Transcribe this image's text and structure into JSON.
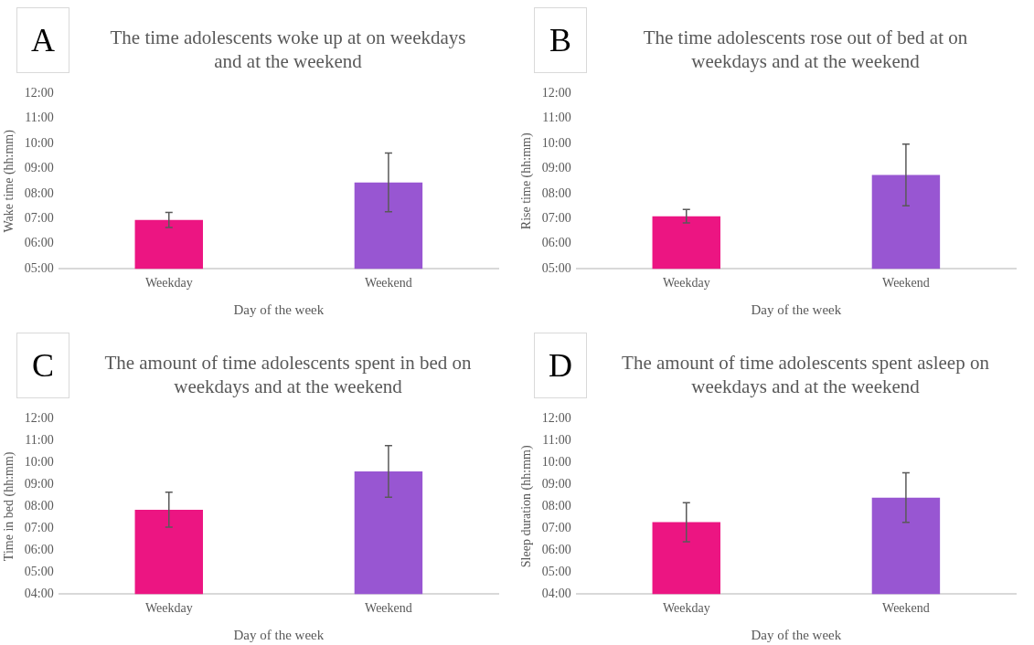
{
  "chart_data": [
    {
      "type": "bar",
      "title": "The time adolescents woke up at on weekdays and at the weekend",
      "xlabel": "Day of the week",
      "ylabel": "Wake time (hh:mm)",
      "categories": [
        "Weekday",
        "Weekend"
      ],
      "values": [
        6.95,
        8.45
      ],
      "colors": [
        "#ec1582",
        "#9856d2"
      ],
      "errors": [
        0.3,
        1.17
      ],
      "ylim": [
        5,
        12
      ],
      "yticks": [
        {
          "value": 5,
          "label": "05:00"
        },
        {
          "value": 6,
          "label": "06:00"
        },
        {
          "value": 7,
          "label": "07:00"
        },
        {
          "value": 8,
          "label": "08:00"
        },
        {
          "value": 9,
          "label": "09:00"
        },
        {
          "value": 10,
          "label": "10:00"
        },
        {
          "value": 11,
          "label": "11:00"
        },
        {
          "value": 12,
          "label": "12:00"
        }
      ],
      "annotations": [
        "A"
      ]
    },
    {
      "type": "bar",
      "title": "The time adolescents rose out of bed at on weekdays and at the weekend",
      "xlabel": "Day of the week",
      "ylabel": "Rise time (hh:mm)",
      "categories": [
        "Weekday",
        "Weekend"
      ],
      "values": [
        7.1,
        8.75
      ],
      "colors": [
        "#ec1582",
        "#9856d2"
      ],
      "errors": [
        0.27,
        1.23
      ],
      "ylim": [
        5,
        12
      ],
      "yticks": [
        {
          "value": 5,
          "label": "05:00"
        },
        {
          "value": 6,
          "label": "06:00"
        },
        {
          "value": 7,
          "label": "07:00"
        },
        {
          "value": 8,
          "label": "08:00"
        },
        {
          "value": 9,
          "label": "09:00"
        },
        {
          "value": 10,
          "label": "10:00"
        },
        {
          "value": 11,
          "label": "11:00"
        },
        {
          "value": 12,
          "label": "12:00"
        }
      ],
      "annotations": [
        "B"
      ]
    },
    {
      "type": "bar",
      "title": "The amount of time adolescents spent in bed on weekdays and at the weekend",
      "xlabel": "Day of the week",
      "ylabel": "Time in bed (hh:mm)",
      "categories": [
        "Weekday",
        "Weekend"
      ],
      "values": [
        7.85,
        9.6
      ],
      "colors": [
        "#ec1582",
        "#9856d2"
      ],
      "errors": [
        0.8,
        1.18
      ],
      "ylim": [
        4,
        12
      ],
      "yticks": [
        {
          "value": 4,
          "label": "04:00"
        },
        {
          "value": 5,
          "label": "05:00"
        },
        {
          "value": 6,
          "label": "06:00"
        },
        {
          "value": 7,
          "label": "07:00"
        },
        {
          "value": 8,
          "label": "08:00"
        },
        {
          "value": 9,
          "label": "09:00"
        },
        {
          "value": 10,
          "label": "10:00"
        },
        {
          "value": 11,
          "label": "11:00"
        },
        {
          "value": 12,
          "label": "12:00"
        }
      ],
      "annotations": [
        "C"
      ]
    },
    {
      "type": "bar",
      "title": "The amount of time adolescents spent asleep on weekdays and at the weekend",
      "xlabel": "Day of the week",
      "ylabel": "Sleep duration (hh:mm)",
      "categories": [
        "Weekday",
        "Weekend"
      ],
      "values": [
        7.28,
        8.4
      ],
      "colors": [
        "#ec1582",
        "#9856d2"
      ],
      "errors": [
        0.89,
        1.13
      ],
      "ylim": [
        4,
        12
      ],
      "yticks": [
        {
          "value": 4,
          "label": "04:00"
        },
        {
          "value": 5,
          "label": "05:00"
        },
        {
          "value": 6,
          "label": "06:00"
        },
        {
          "value": 7,
          "label": "07:00"
        },
        {
          "value": 8,
          "label": "08:00"
        },
        {
          "value": 9,
          "label": "09:00"
        },
        {
          "value": 10,
          "label": "10:00"
        },
        {
          "value": 11,
          "label": "11:00"
        },
        {
          "value": 12,
          "label": "12:00"
        }
      ],
      "annotations": [
        "D"
      ]
    }
  ]
}
